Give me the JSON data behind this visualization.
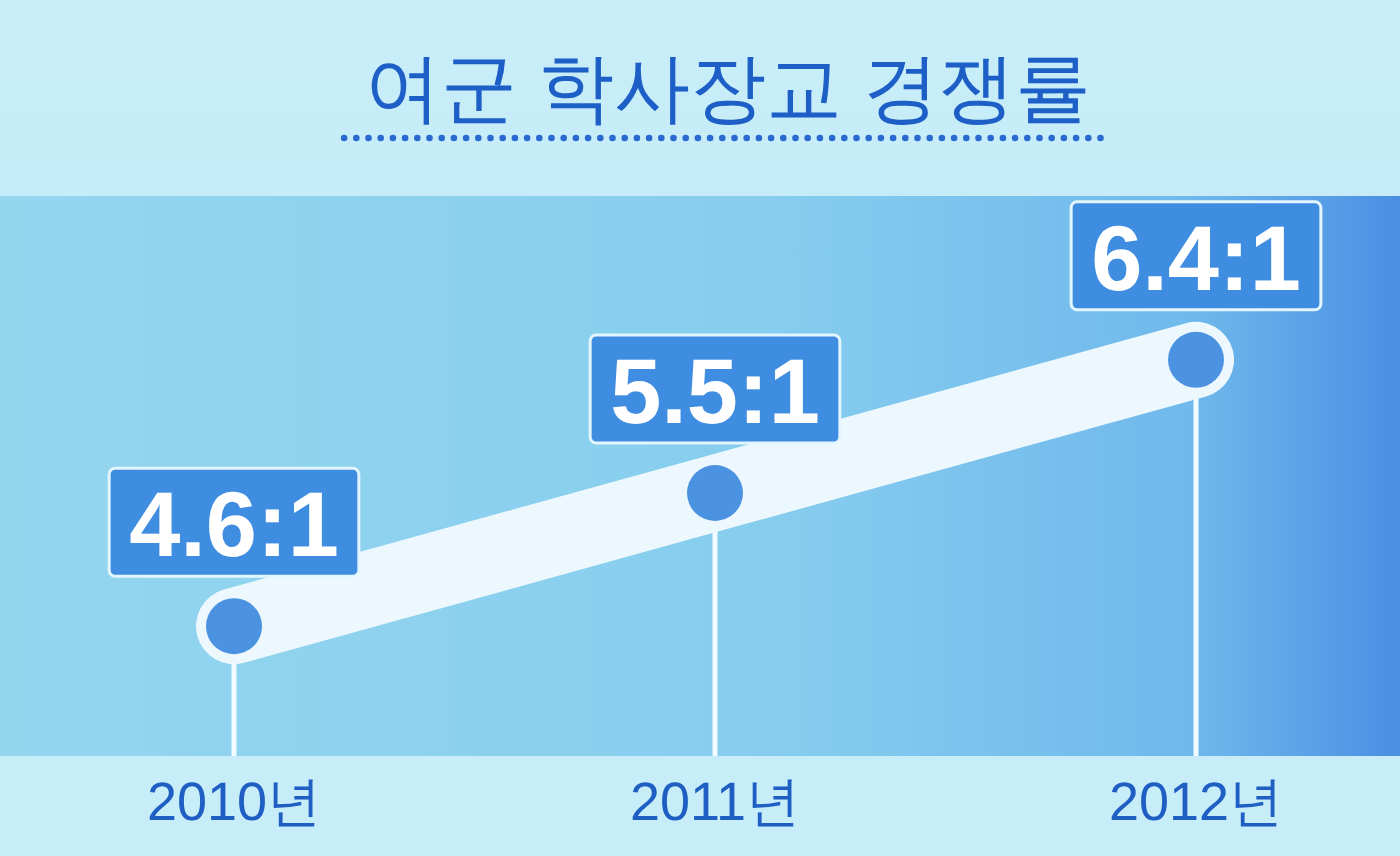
{
  "chart_data": {
    "type": "line",
    "title": "여군 학사장교 경쟁률",
    "categories": [
      "2010년",
      "2011년",
      "2012년"
    ],
    "values": [
      4.6,
      5.5,
      6.4
    ],
    "value_labels": [
      "4.6:1",
      "5.5:1",
      "6.4:1"
    ],
    "color": "#ecf8fd",
    "marker": "circle",
    "line_style": "solid"
  }
}
